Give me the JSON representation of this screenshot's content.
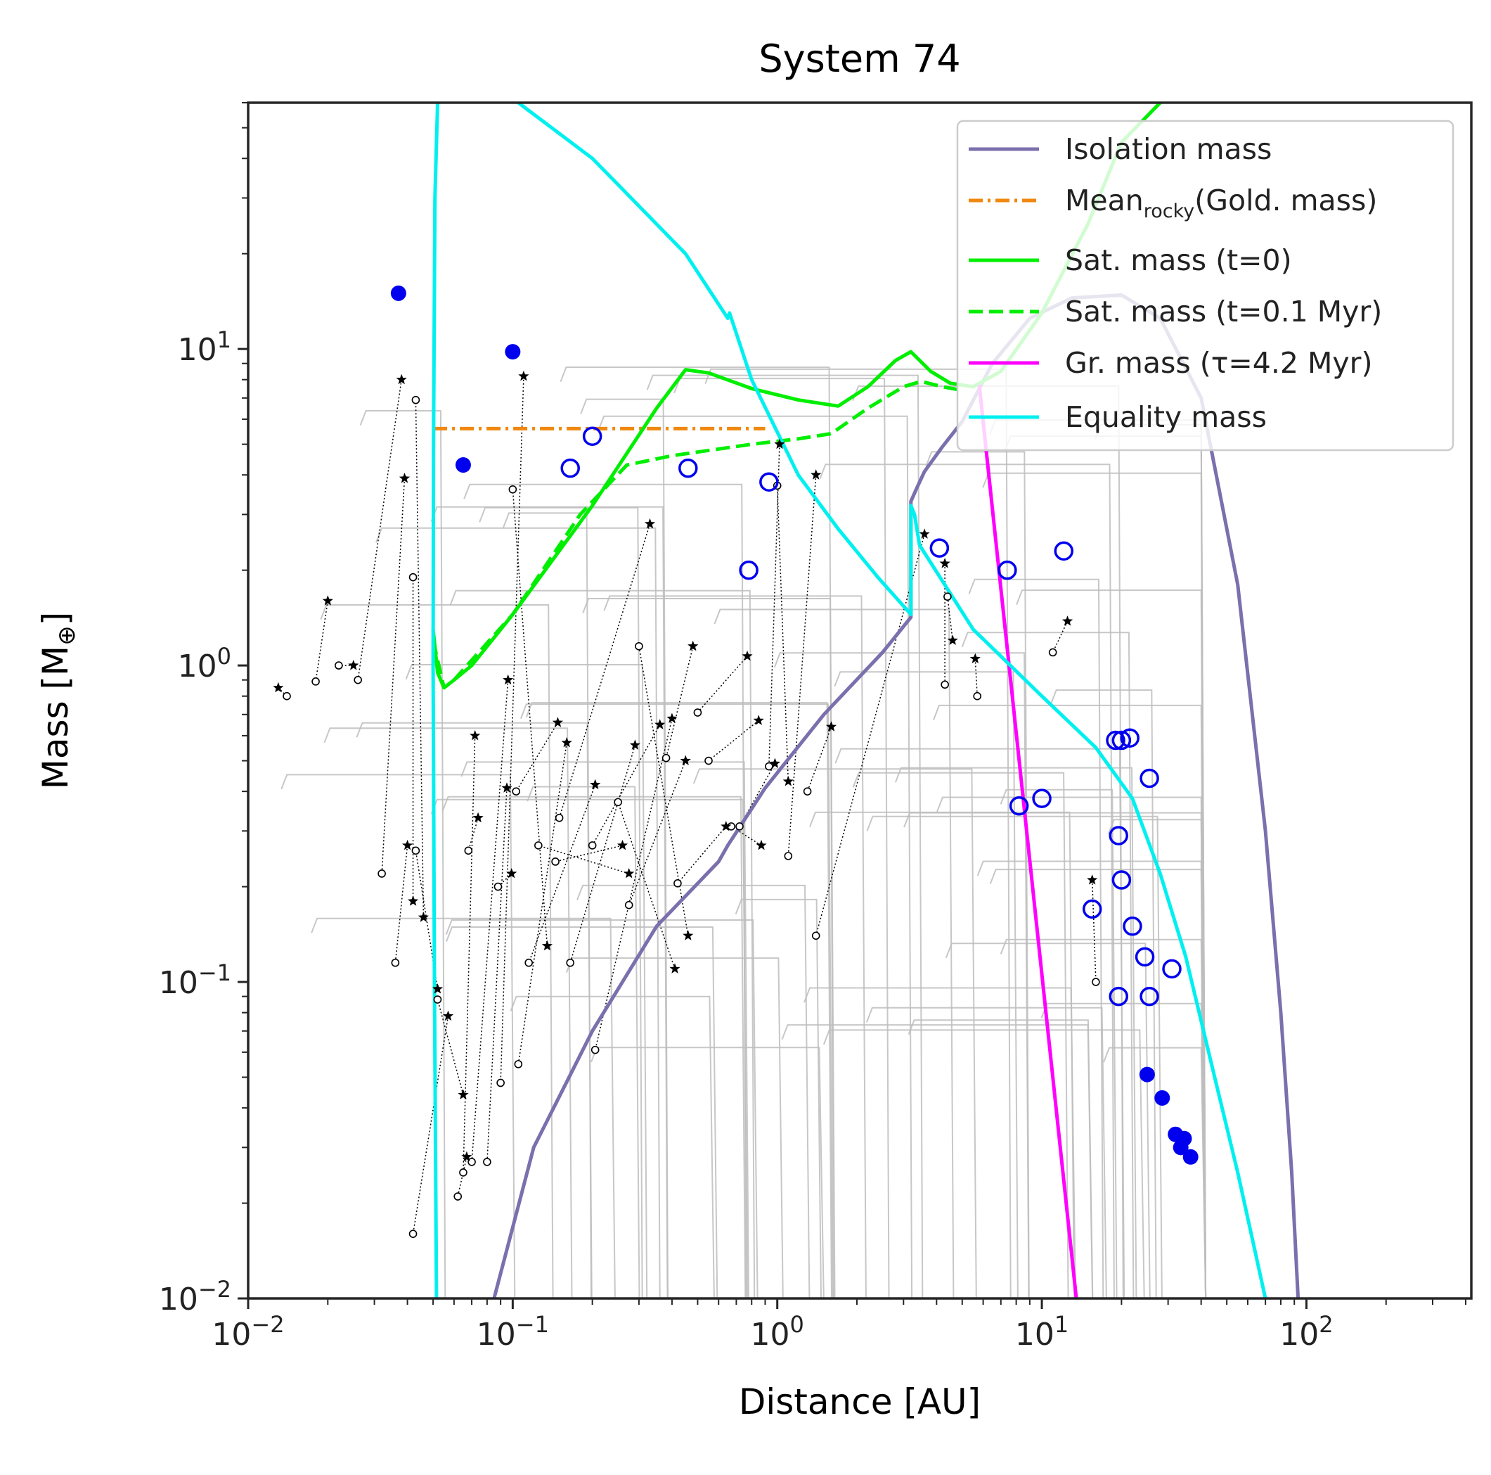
{
  "chart_data": {
    "type": "scatter",
    "title": "System 74",
    "xlabel": "Distance [AU]",
    "ylabel_main": "Mass [M",
    "ylabel_sub": "⊕",
    "ylabel_end": "]",
    "xscale": "log",
    "yscale": "log",
    "xlim": [
      0.01,
      420
    ],
    "ylim": [
      0.01,
      60
    ],
    "x_tick_labels": [
      {
        "value": 0.01,
        "base": "10",
        "exp": "−2"
      },
      {
        "value": 0.1,
        "base": "10",
        "exp": "−1"
      },
      {
        "value": 1,
        "base": "10",
        "exp": "0"
      },
      {
        "value": 10,
        "base": "10",
        "exp": "1"
      },
      {
        "value": 100,
        "base": "10",
        "exp": "2"
      }
    ],
    "y_tick_labels": [
      {
        "value": 0.01,
        "base": "10",
        "exp": "−2"
      },
      {
        "value": 0.1,
        "base": "10",
        "exp": "−1"
      },
      {
        "value": 1,
        "base": "10",
        "exp": "0"
      },
      {
        "value": 10,
        "base": "10",
        "exp": "1"
      }
    ],
    "grid": false,
    "legend_position": "top-right",
    "legend": [
      {
        "label": "Isolation mass",
        "color": "#7b6fad",
        "style": "solid"
      },
      {
        "label_pre": "Mean",
        "label_sub": "rocky",
        "label_post": "(Gold. mass)",
        "color": "#f0870f",
        "style": "dashdot"
      },
      {
        "label": "Sat. mass (t=0)",
        "color": "#00ee00",
        "style": "solid"
      },
      {
        "label": "Sat. mass (t=0.1 Myr)",
        "color": "#00ee00",
        "style": "dashed"
      },
      {
        "label": "Gr. mass (τ=4.2 Myr)",
        "color": "#ff00ff",
        "style": "solid"
      },
      {
        "label": "Equality mass",
        "color": "#00f0f0",
        "style": "solid"
      }
    ],
    "series": [
      {
        "id": "isolation",
        "color": "#7b6fad",
        "x": [
          0.085,
          0.12,
          0.2,
          0.35,
          0.6,
          0.65,
          0.9,
          1.5,
          2.5,
          3.2,
          3.2,
          3.35,
          3.6,
          3.9,
          4.2,
          5.0,
          6.5,
          9.0,
          13.0,
          20.0,
          28.0,
          40.0,
          55.0,
          70.0,
          80.0,
          88.0,
          93.0
        ],
        "y": [
          0.01,
          0.03,
          0.07,
          0.15,
          0.24,
          0.27,
          0.41,
          0.7,
          1.1,
          1.42,
          3.3,
          3.6,
          4.1,
          4.5,
          4.9,
          5.9,
          9.0,
          12.5,
          14.5,
          14.8,
          12.5,
          7.0,
          1.8,
          0.3,
          0.08,
          0.025,
          0.01
        ]
      },
      {
        "id": "mean_rocky",
        "color": "#f0870f",
        "x": [
          0.05,
          0.9
        ],
        "y": [
          5.6,
          5.6
        ]
      },
      {
        "id": "sat_t0",
        "color": "#00ee00",
        "x": [
          0.05,
          0.052,
          0.055,
          0.06,
          0.07,
          0.1,
          0.2,
          0.35,
          0.45,
          0.55,
          0.8,
          1.2,
          1.7,
          2.2,
          2.8,
          3.2,
          3.8,
          4.5,
          5.5,
          7.0,
          10.0,
          15.0,
          20.0,
          28.0
        ],
        "y": [
          1.3,
          0.95,
          0.85,
          0.9,
          1.0,
          1.45,
          3.2,
          6.5,
          8.6,
          8.4,
          7.5,
          6.9,
          6.6,
          7.6,
          9.2,
          9.8,
          8.5,
          7.8,
          7.6,
          8.5,
          13.0,
          25.0,
          45.0,
          60.0
        ]
      },
      {
        "id": "sat_t01",
        "color": "#00ee00",
        "x": [
          0.05,
          0.055,
          0.06,
          0.1,
          0.18,
          0.27,
          0.4,
          0.8,
          1.2,
          1.6,
          2.2,
          3.0,
          3.5,
          4.2,
          5.0
        ],
        "y": [
          1.2,
          0.85,
          0.9,
          1.45,
          3.0,
          4.3,
          4.6,
          5.0,
          5.2,
          5.4,
          6.5,
          7.6,
          7.9,
          7.6,
          7.4
        ]
      },
      {
        "id": "growth",
        "color": "#ff00ff",
        "x": [
          5.8,
          13.5
        ],
        "y": [
          7.7,
          0.01
        ]
      },
      {
        "id": "equality_left",
        "color": "#00f0f0",
        "x": [
          0.0515,
          0.0506,
          0.0502,
          0.05,
          0.0502,
          0.0508,
          0.052
        ],
        "y": [
          0.01,
          0.1,
          0.5,
          1.0,
          5.0,
          30.0,
          60.0
        ]
      },
      {
        "id": "equality_right",
        "color": "#00f0f0",
        "x": [
          0.105,
          0.2,
          0.45,
          0.65,
          0.66,
          0.8,
          1.2,
          1.7,
          2.4,
          3.2,
          3.2,
          3.3,
          3.45,
          5.5,
          10.0,
          16.0,
          22.0,
          28.0,
          35.0,
          45.0,
          55.0,
          70.0
        ],
        "y": [
          60.0,
          40.0,
          20.0,
          12.5,
          13.0,
          8.0,
          4.0,
          2.7,
          1.9,
          1.45,
          3.2,
          3.0,
          2.4,
          1.3,
          0.8,
          0.55,
          0.38,
          0.22,
          0.12,
          0.05,
          0.025,
          0.01
        ]
      }
    ],
    "filled_points": {
      "color": "#0000ee",
      "x": [
        0.037,
        0.065,
        0.1,
        25.0,
        28.5,
        32.0,
        34.5,
        33.5,
        36.5
      ],
      "y": [
        15.0,
        4.3,
        9.8,
        0.051,
        0.043,
        0.033,
        0.032,
        0.03,
        0.028
      ]
    },
    "open_points": {
      "color": "#0000ee",
      "x": [
        0.165,
        0.2,
        0.46,
        0.93,
        0.78,
        4.1,
        7.4,
        12.1,
        8.2,
        10.0,
        19.0,
        20.0,
        21.5,
        25.5,
        19.5,
        20.0,
        15.5,
        22.0,
        24.5,
        31.0,
        19.5,
        25.5
      ],
      "y": [
        4.2,
        5.3,
        4.2,
        3.8,
        2.0,
        2.35,
        2.0,
        2.3,
        0.36,
        0.38,
        0.58,
        0.58,
        0.59,
        0.44,
        0.29,
        0.21,
        0.17,
        0.15,
        0.12,
        0.11,
        0.09,
        0.09
      ]
    },
    "star_markers": {
      "x": [
        0.013,
        0.02,
        0.025,
        0.038,
        0.039,
        0.04,
        0.042,
        0.046,
        0.052,
        0.057,
        0.065,
        0.067,
        0.072,
        0.074,
        0.096,
        0.095,
        0.099,
        0.11,
        0.135,
        0.148,
        0.16,
        0.205,
        0.275,
        0.26,
        0.33,
        0.29,
        0.36,
        0.4,
        0.41,
        0.45,
        0.46,
        0.48,
        0.64,
        0.77,
        0.85,
        0.87,
        0.98,
        1.02,
        1.1,
        1.4,
        1.6,
        3.6,
        4.3,
        4.6,
        5.6,
        12.5,
        15.5
      ],
      "y": [
        0.85,
        1.6,
        1.0,
        8.0,
        3.9,
        0.27,
        0.18,
        0.16,
        0.095,
        0.078,
        0.044,
        0.028,
        0.6,
        0.33,
        0.9,
        0.41,
        0.22,
        8.2,
        0.13,
        0.66,
        0.57,
        0.42,
        0.22,
        0.27,
        2.8,
        0.56,
        0.65,
        0.68,
        0.11,
        0.5,
        0.14,
        1.15,
        0.31,
        1.07,
        0.67,
        0.27,
        0.49,
        5.0,
        0.43,
        4.0,
        0.64,
        2.6,
        2.1,
        1.2,
        1.05,
        1.38,
        0.21
      ]
    },
    "small_open_markers": {
      "x": [
        0.014,
        0.018,
        0.022,
        0.026,
        0.032,
        0.036,
        0.042,
        0.043,
        0.043,
        0.042,
        0.052,
        0.062,
        0.065,
        0.068,
        0.07,
        0.08,
        0.088,
        0.09,
        0.1,
        0.103,
        0.105,
        0.115,
        0.125,
        0.145,
        0.15,
        0.165,
        0.2,
        0.205,
        0.25,
        0.275,
        0.3,
        0.38,
        0.42,
        0.5,
        0.55,
        0.67,
        0.72,
        0.93,
        1.0,
        1.1,
        1.3,
        1.4,
        4.3,
        4.4,
        5.7,
        11.0,
        16.0
      ],
      "y": [
        0.8,
        0.89,
        1.0,
        0.9,
        0.22,
        0.115,
        1.9,
        6.9,
        0.26,
        0.016,
        0.088,
        0.021,
        0.025,
        0.26,
        0.027,
        0.027,
        0.2,
        0.048,
        3.6,
        0.4,
        0.055,
        0.115,
        0.27,
        0.24,
        0.33,
        0.115,
        0.27,
        0.061,
        0.37,
        0.175,
        1.15,
        0.51,
        0.205,
        0.71,
        0.5,
        0.31,
        0.31,
        0.48,
        3.7,
        0.25,
        0.4,
        0.14,
        0.87,
        1.65,
        0.8,
        1.1,
        0.1
      ]
    },
    "track_color": "#bdbdbd"
  }
}
